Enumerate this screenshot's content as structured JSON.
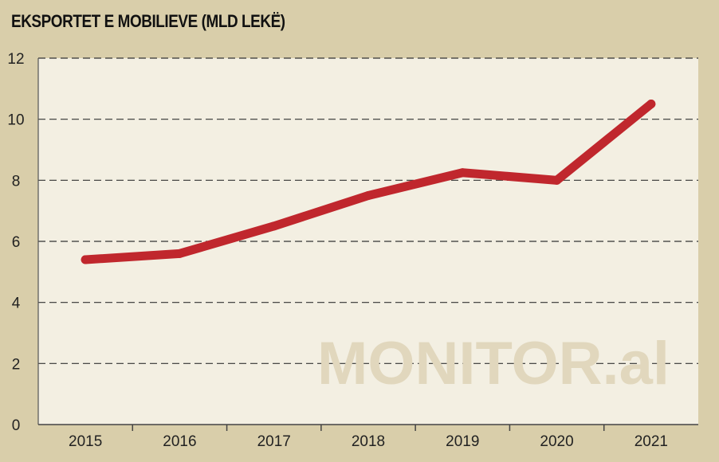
{
  "chart_data": {
    "type": "line",
    "title": "EKSPORTET E MOBILIEVE (MLD LEKË)",
    "categories": [
      "2015",
      "2016",
      "2017",
      "2018",
      "2019",
      "2020",
      "2021"
    ],
    "series": [
      {
        "values": [
          5.4,
          5.6,
          6.5,
          7.5,
          8.25,
          8.0,
          10.5
        ]
      }
    ],
    "ylim": [
      0,
      12
    ],
    "yticks": [
      0,
      2,
      4,
      6,
      8,
      10,
      12
    ],
    "grid": true,
    "line_color": "#c0272d",
    "background_color": "#d9ceaa",
    "plot_background_color": "#f3efe2"
  },
  "watermark": "MONITOR.al"
}
